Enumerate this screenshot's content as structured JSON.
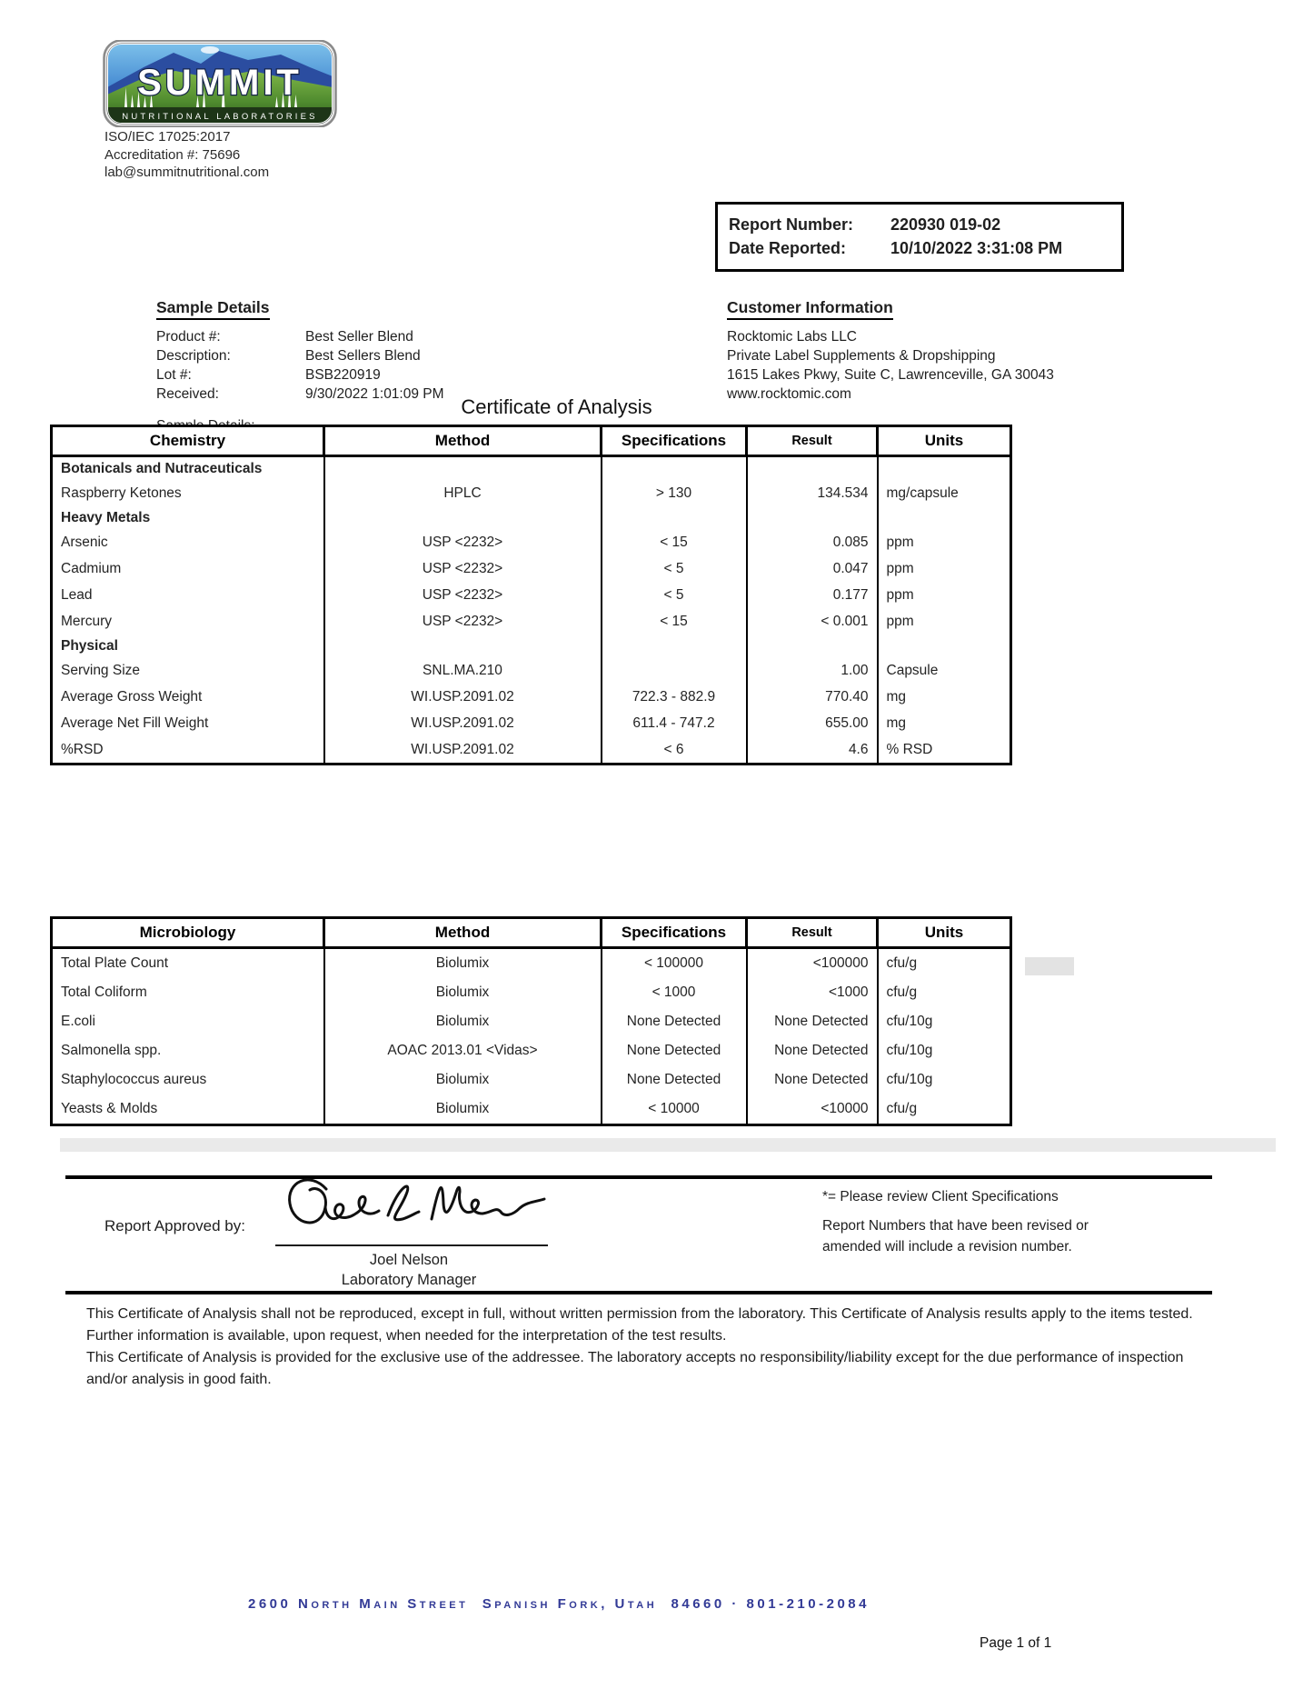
{
  "header": {
    "logo": {
      "brand": "SUMMIT",
      "tagline": "NUTRITIONAL LABORATORIES"
    },
    "accreditation_lines": [
      "ISO/IEC 17025:2017",
      "Accreditation #: 75696",
      "lab@summitnutritional.com"
    ],
    "report_box": {
      "report_number_label": "Report Number:",
      "report_number": "220930 019-02",
      "date_reported_label": "Date Reported:",
      "date_reported": "10/10/2022 3:31:08 PM"
    }
  },
  "sample_details": {
    "heading": "Sample Details",
    "fields": [
      {
        "label": "Product #:",
        "value": "Best Seller Blend"
      },
      {
        "label": "Description:",
        "value": "Best Sellers Blend"
      },
      {
        "label": "Lot #:",
        "value": "BSB220919"
      },
      {
        "label": "Received:",
        "value": "9/30/2022 1:01:09 PM"
      }
    ],
    "extra_label": "Sample Details:"
  },
  "customer_information": {
    "heading": "Customer Information",
    "lines": [
      "Rocktomic Labs LLC",
      "Private Label Supplements & Dropshipping",
      "1615 Lakes Pkwy, Suite C, Lawrenceville, GA 30043",
      "www.rocktomic.com"
    ]
  },
  "title": "Certificate of Analysis",
  "chemistry_table": {
    "headers": [
      "Chemistry",
      "Method",
      "Specifications",
      "Result",
      "Units"
    ],
    "rows": [
      {
        "analyte": "Botanicals and Nutraceuticals",
        "method": "",
        "spec": "",
        "result": "",
        "units": "",
        "section": true
      },
      {
        "analyte": "Raspberry Ketones",
        "method": "HPLC",
        "spec": "> 130",
        "result": "134.534",
        "units": "mg/capsule",
        "section": false
      },
      {
        "analyte": "Heavy Metals",
        "method": "",
        "spec": "",
        "result": "",
        "units": "",
        "section": true
      },
      {
        "analyte": "Arsenic",
        "method": "USP <2232>",
        "spec": "< 15",
        "result": "0.085",
        "units": "ppm",
        "section": false
      },
      {
        "analyte": "Cadmium",
        "method": "USP <2232>",
        "spec": "< 5",
        "result": "0.047",
        "units": "ppm",
        "section": false
      },
      {
        "analyte": "Lead",
        "method": "USP <2232>",
        "spec": "< 5",
        "result": "0.177",
        "units": "ppm",
        "section": false
      },
      {
        "analyte": "Mercury",
        "method": "USP <2232>",
        "spec": "< 15",
        "result": "< 0.001",
        "units": "ppm",
        "section": false
      },
      {
        "analyte": "Physical",
        "method": "",
        "spec": "",
        "result": "",
        "units": "",
        "section": true
      },
      {
        "analyte": "Serving Size",
        "method": "SNL.MA.210",
        "spec": "",
        "result": "1.00",
        "units": "Capsule",
        "section": false
      },
      {
        "analyte": "Average Gross Weight",
        "method": "WI.USP.2091.02",
        "spec": "722.3 - 882.9",
        "result": "770.40",
        "units": "mg",
        "section": false
      },
      {
        "analyte": "Average Net Fill Weight",
        "method": "WI.USP.2091.02",
        "spec": "611.4 - 747.2",
        "result": "655.00",
        "units": "mg",
        "section": false
      },
      {
        "analyte": "%RSD",
        "method": "WI.USP.2091.02",
        "spec": "< 6",
        "result": "4.6",
        "units": "% RSD",
        "section": false
      }
    ]
  },
  "microbiology_table": {
    "headers": [
      "Microbiology",
      "Method",
      "Specifications",
      "Result",
      "Units"
    ],
    "rows": [
      {
        "analyte": "Total Plate Count",
        "method": "Biolumix",
        "spec": "< 100000",
        "result": "<100000",
        "units": "cfu/g",
        "section": false
      },
      {
        "analyte": "Total Coliform",
        "method": "Biolumix",
        "spec": "< 1000",
        "result": "<1000",
        "units": "cfu/g",
        "section": false
      },
      {
        "analyte": "E.coli",
        "method": "Biolumix",
        "spec": "None Detected",
        "result": "None Detected",
        "units": "cfu/10g",
        "section": false
      },
      {
        "analyte": "Salmonella spp.",
        "method": "AOAC 2013.01 <Vidas>",
        "spec": "None Detected",
        "result": "None Detected",
        "units": "cfu/10g",
        "section": false
      },
      {
        "analyte": "Staphylococcus aureus",
        "method": "Biolumix",
        "spec": "None Detected",
        "result": "None Detected",
        "units": "cfu/10g",
        "section": false
      },
      {
        "analyte": "Yeasts & Molds",
        "method": "Biolumix",
        "spec": "< 10000",
        "result": "<10000",
        "units": "cfu/g",
        "section": false
      }
    ]
  },
  "approval": {
    "label": "Report Approved by:",
    "signatory_name": "Joel Nelson",
    "signatory_title": "Laboratory Manager"
  },
  "notes": {
    "asterisk_note": "*= Please review Client Specifications",
    "revision_note": "Report Numbers that have been revised or amended will include a revision number."
  },
  "disclaimer_paragraphs": [
    "This Certificate of Analysis shall not be reproduced, except in full, without written permission from the laboratory. This Certificate of Analysis results apply to the items tested. Further information is available, upon request, when needed for the interpretation of the test results.",
    "This Certificate of Analysis is provided for the exclusive use of the addressee. The laboratory accepts no responsibility/liability except for the due performance of inspection and/or analysis in good faith."
  ],
  "footer": {
    "address": "2600 North Main Street  Spanish Fork, Utah  84660 · 801-210-2084",
    "page_indicator": "Page 1 of 1"
  },
  "colors": {
    "footer_blue": "#323a96",
    "table_border": "#000000",
    "logo_sky_blue": "#4a8fd4",
    "logo_green": "#4e8a2e",
    "logo_band_green": "#1d3517"
  }
}
